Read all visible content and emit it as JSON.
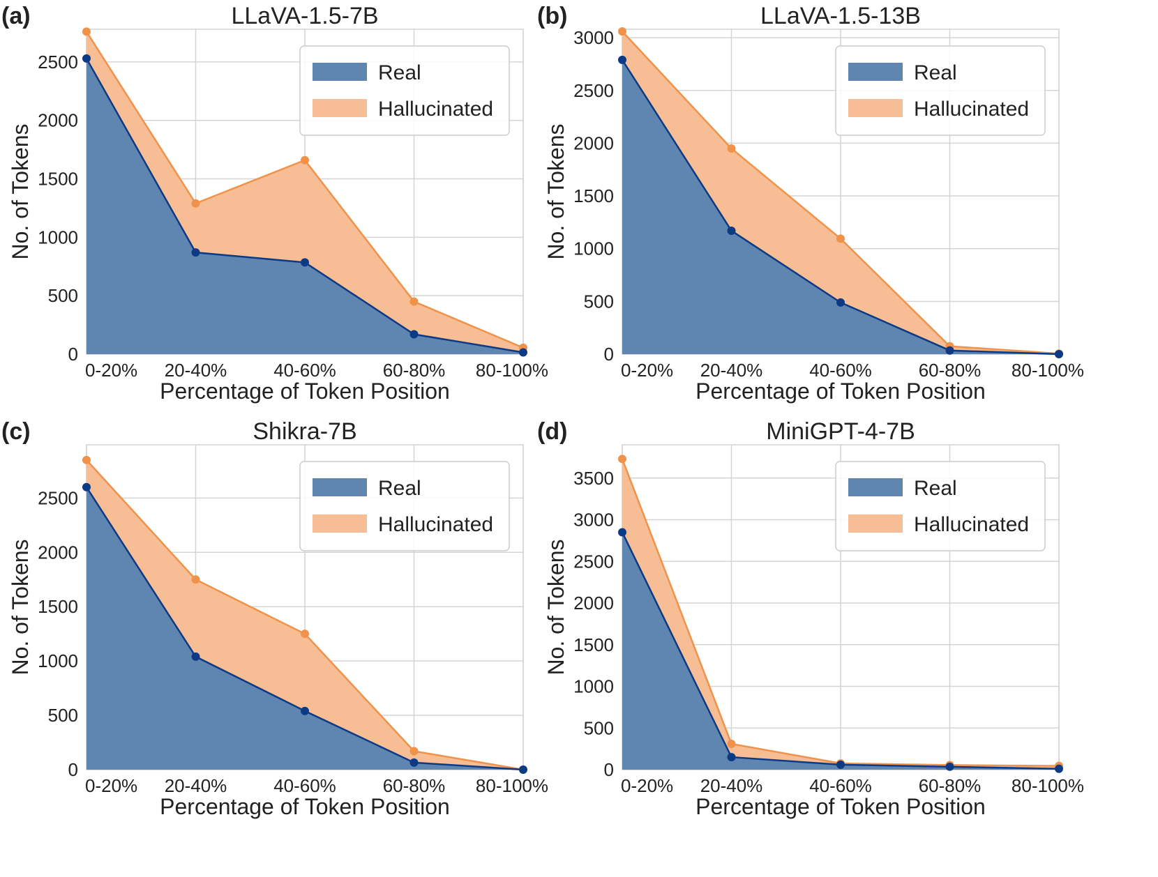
{
  "figure": {
    "colors": {
      "real_fill": "#5f86b0",
      "real_line": "#0c3a85",
      "hallucinated_fill": "#f7bd94",
      "hallucinated_line": "#f0924a",
      "grid": "#d4d4d4",
      "frame": "#d4d4d4"
    },
    "legend_placement": "top-right",
    "grid": true
  },
  "chart_data": [
    {
      "type": "area",
      "panel": "(a)",
      "title": "LLaVA-1.5-7B",
      "xlabel": "Percentage of  Token Position",
      "ylabel": "No. of  Tokens",
      "categories": [
        "0-20%",
        "20-40%",
        "40-60%",
        "60-80%",
        "80-100%"
      ],
      "ylim": [
        0,
        2780
      ],
      "yticks": [
        0,
        500,
        1000,
        1500,
        2000,
        2500
      ],
      "series": [
        {
          "name": "Real",
          "values": [
            2530,
            870,
            785,
            170,
            15
          ]
        },
        {
          "name": "Hallucinated",
          "values": [
            2760,
            1290,
            1660,
            450,
            55
          ]
        }
      ]
    },
    {
      "type": "area",
      "panel": "(b)",
      "title": "LLaVA-1.5-13B",
      "xlabel": "Percentage of  Token Position",
      "ylabel": "No. of  Tokens",
      "categories": [
        "0-20%",
        "20-40%",
        "40-60%",
        "60-80%",
        "80-100%"
      ],
      "ylim": [
        0,
        3080
      ],
      "yticks": [
        0,
        500,
        1000,
        1500,
        2000,
        2500,
        3000
      ],
      "series": [
        {
          "name": "Real",
          "values": [
            2790,
            1170,
            490,
            35,
            0
          ]
        },
        {
          "name": "Hallucinated",
          "values": [
            3060,
            1950,
            1095,
            75,
            5
          ]
        }
      ]
    },
    {
      "type": "area",
      "panel": "(c)",
      "title": "Shikra-7B",
      "xlabel": "Percentage of  Token Position",
      "ylabel": "No. of  Tokens",
      "categories": [
        "0-20%",
        "20-40%",
        "40-60%",
        "60-80%",
        "80-100%"
      ],
      "ylim": [
        0,
        2990
      ],
      "yticks": [
        0,
        500,
        1000,
        1500,
        2000,
        2500
      ],
      "series": [
        {
          "name": "Real",
          "values": [
            2600,
            1040,
            540,
            65,
            0
          ]
        },
        {
          "name": "Hallucinated",
          "values": [
            2850,
            1750,
            1250,
            170,
            0
          ]
        }
      ]
    },
    {
      "type": "area",
      "panel": "(d)",
      "title": "MiniGPT-4-7B",
      "xlabel": "Percentage of  Token Position",
      "ylabel": "No. of  Tokens",
      "categories": [
        "0-20%",
        "20-40%",
        "40-60%",
        "60-80%",
        "80-100%"
      ],
      "ylim": [
        0,
        3900
      ],
      "yticks": [
        0,
        500,
        1000,
        1500,
        2000,
        2500,
        3000,
        3500
      ],
      "series": [
        {
          "name": "Real",
          "values": [
            2850,
            150,
            60,
            35,
            10
          ]
        },
        {
          "name": "Hallucinated",
          "values": [
            3730,
            310,
            75,
            55,
            45
          ]
        }
      ]
    }
  ]
}
